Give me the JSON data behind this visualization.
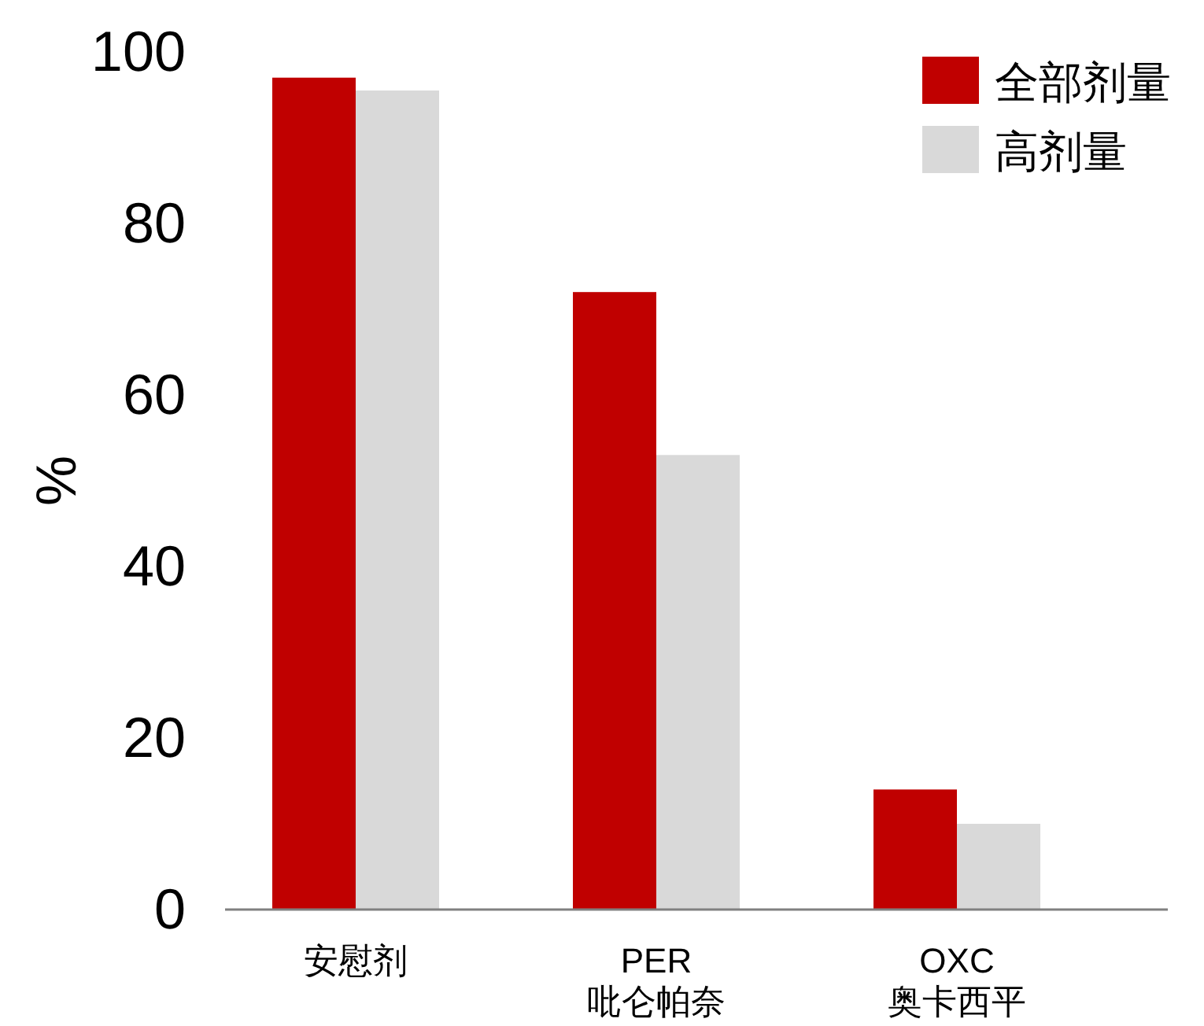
{
  "chart_data": {
    "type": "bar",
    "ylabel": "%",
    "categories": [
      "安慰剂",
      "PER\n吡仑帕奈",
      "OXC\n奥卡西平"
    ],
    "series": [
      {
        "name": "全部剂量",
        "color": "#c00000",
        "values": [
          97,
          72,
          14
        ]
      },
      {
        "name": "高剂量",
        "color": "#d9d9d9",
        "values": [
          95.5,
          53,
          10
        ]
      }
    ],
    "ylim": [
      0,
      100
    ],
    "yticks": [
      0,
      20,
      40,
      60,
      80,
      100
    ],
    "grid": false,
    "legend": "top right"
  }
}
